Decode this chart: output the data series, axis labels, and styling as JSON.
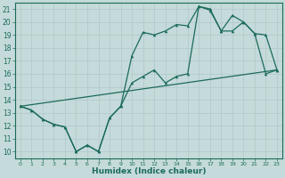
{
  "xlabel": "Humidex (Indice chaleur)",
  "xlim": [
    -0.5,
    23.5
  ],
  "ylim": [
    9.5,
    21.5
  ],
  "xticks": [
    0,
    1,
    2,
    3,
    4,
    5,
    6,
    7,
    8,
    9,
    10,
    11,
    12,
    13,
    14,
    15,
    16,
    17,
    18,
    19,
    20,
    21,
    22,
    23
  ],
  "yticks": [
    10,
    11,
    12,
    13,
    14,
    15,
    16,
    17,
    18,
    19,
    20,
    21
  ],
  "bg_color": "#c5dada",
  "grid_color": "#b0c8c8",
  "line_color": "#1a6b5a",
  "line1_x": [
    0,
    1,
    2,
    3,
    4,
    5,
    6,
    7,
    8,
    9,
    10,
    11,
    12,
    13,
    14,
    15,
    16,
    17,
    18,
    19,
    20,
    21,
    22,
    23
  ],
  "line1_y": [
    13.5,
    13.2,
    12.5,
    12.1,
    11.9,
    10.0,
    10.5,
    10.0,
    12.6,
    13.5,
    17.4,
    19.2,
    19.0,
    19.3,
    19.8,
    19.7,
    21.2,
    20.9,
    19.3,
    19.3,
    20.0,
    19.1,
    19.0,
    16.3
  ],
  "line2_x": [
    0,
    1,
    2,
    3,
    4,
    5,
    6,
    7,
    8,
    9,
    10,
    11,
    12,
    13,
    14,
    15,
    16,
    17,
    18,
    19,
    20,
    21,
    22,
    23
  ],
  "line2_y": [
    13.5,
    13.2,
    12.5,
    12.1,
    11.9,
    10.0,
    10.5,
    10.0,
    12.6,
    13.5,
    15.3,
    15.8,
    16.3,
    15.3,
    15.8,
    16.0,
    21.2,
    21.0,
    19.3,
    20.5,
    20.0,
    19.1,
    16.0,
    16.3
  ],
  "line3_x": [
    0,
    23
  ],
  "line3_y": [
    13.5,
    16.3
  ]
}
